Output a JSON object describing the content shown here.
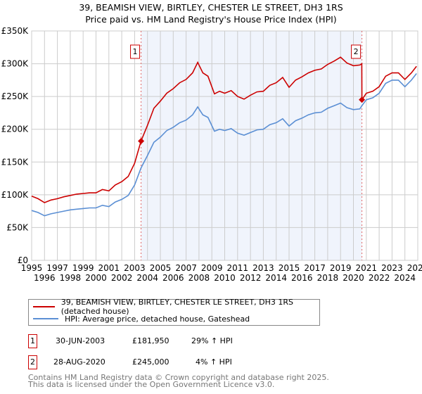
{
  "title_line1": "39, BEAMISH VIEW, BIRTLEY, CHESTER LE STREET, DH3 1RS",
  "title_line2": "Price paid vs. HM Land Registry's House Price Index (HPI)",
  "chart_data": {
    "type": "line",
    "title": "39, BEAMISH VIEW, BIRTLEY, CHESTER LE STREET, DH3 1RS - Price paid vs. HM Land Registry's House Price Index (HPI)",
    "xlim": [
      1995,
      2025
    ],
    "ylim": [
      0,
      350000
    ],
    "grid": true,
    "y_ticks": [
      0,
      50000,
      100000,
      150000,
      200000,
      250000,
      300000,
      350000
    ],
    "y_tick_labels": [
      "£0",
      "£50K",
      "£100K",
      "£150K",
      "£200K",
      "£250K",
      "£300K",
      "£350K"
    ],
    "x_tick_labels": [
      "1995",
      "1996",
      "1997",
      "1998",
      "1999",
      "2000",
      "2001",
      "2002",
      "2003",
      "2004",
      "2005",
      "2006",
      "2007",
      "2008",
      "2009",
      "2010",
      "2011",
      "2012",
      "2013",
      "2014",
      "2015",
      "2016",
      "2017",
      "2018",
      "2019",
      "2020",
      "2021",
      "2022",
      "2023",
      "2024",
      "2025"
    ],
    "shaded_range": [
      2003.5,
      2020.66
    ],
    "series": [
      {
        "name": "39, BEAMISH VIEW, BIRTLEY, CHESTER LE STREET, DH3 1RS (detached house)",
        "color": "#cc0000",
        "x": [
          1995,
          1995.5,
          1996,
          1996.5,
          1997,
          1997.5,
          1998,
          1998.5,
          1999,
          1999.5,
          2000,
          2000.5,
          2001,
          2001.5,
          2002,
          2002.5,
          2003,
          2003.5,
          2004,
          2004.5,
          2005,
          2005.5,
          2006,
          2006.5,
          2007,
          2007.5,
          2007.9,
          2008.3,
          2008.7,
          2009.2,
          2009.6,
          2010,
          2010.5,
          2011,
          2011.5,
          2012,
          2012.5,
          2013,
          2013.5,
          2014,
          2014.5,
          2015,
          2015.5,
          2016,
          2016.5,
          2017,
          2017.5,
          2018,
          2018.5,
          2019,
          2019.5,
          2020,
          2020.5,
          2020.65,
          2020.66,
          2021,
          2021.5,
          2022,
          2022.5,
          2023,
          2023.5,
          2024,
          2024.5,
          2024.9
        ],
        "y": [
          98000,
          94000,
          88000,
          92000,
          94000,
          97000,
          99000,
          101000,
          102000,
          103000,
          103000,
          108000,
          106000,
          115000,
          120000,
          128000,
          148000,
          181950,
          206000,
          232000,
          243000,
          255000,
          262000,
          271000,
          276000,
          286000,
          302000,
          286000,
          281000,
          254000,
          258000,
          255000,
          259000,
          250000,
          246000,
          252000,
          257000,
          258000,
          267000,
          271000,
          279000,
          264000,
          275000,
          280000,
          286000,
          290000,
          292000,
          299000,
          304000,
          310000,
          301000,
          297000,
          298000,
          300000,
          245000,
          255000,
          258000,
          265000,
          281000,
          286000,
          286000,
          276000,
          286000,
          296000
        ]
      },
      {
        "name": "HPI: Average price, detached house, Gateshead",
        "color": "#5b8fd4",
        "x": [
          1995,
          1995.5,
          1996,
          1996.5,
          1997,
          1997.5,
          1998,
          1998.5,
          1999,
          1999.5,
          2000,
          2000.5,
          2001,
          2001.5,
          2002,
          2002.5,
          2003,
          2003.5,
          2004,
          2004.5,
          2005,
          2005.5,
          2006,
          2006.5,
          2007,
          2007.5,
          2007.9,
          2008.3,
          2008.7,
          2009.2,
          2009.6,
          2010,
          2010.5,
          2011,
          2011.5,
          2012,
          2012.5,
          2013,
          2013.5,
          2014,
          2014.5,
          2015,
          2015.5,
          2016,
          2016.5,
          2017,
          2017.5,
          2018,
          2018.5,
          2019,
          2019.5,
          2020,
          2020.5,
          2020.66,
          2021,
          2021.5,
          2022,
          2022.5,
          2023,
          2023.5,
          2024,
          2024.5,
          2024.9
        ],
        "y": [
          76000,
          73000,
          68000,
          71000,
          73000,
          75000,
          77000,
          78000,
          79000,
          80000,
          80000,
          84000,
          82000,
          89000,
          93000,
          99000,
          115000,
          141000,
          160000,
          180000,
          188000,
          198000,
          203000,
          210000,
          214000,
          222000,
          234000,
          222000,
          218000,
          197000,
          200000,
          198000,
          201000,
          194000,
          191000,
          195000,
          199000,
          200000,
          207000,
          210000,
          216000,
          205000,
          213000,
          217000,
          222000,
          225000,
          226000,
          232000,
          236000,
          240000,
          233000,
          230000,
          231000,
          236000,
          245000,
          248000,
          255000,
          270000,
          275000,
          275000,
          265000,
          275000,
          285000
        ]
      }
    ],
    "sales": [
      {
        "label": "1",
        "x": 2003.5,
        "y": 181950
      },
      {
        "label": "2",
        "x": 2020.66,
        "y": 245000
      }
    ]
  },
  "legend": {
    "property": "39, BEAMISH VIEW, BIRTLEY, CHESTER LE STREET, DH3 1RS (detached house)",
    "hpi": "HPI: Average price, detached house, Gateshead"
  },
  "transactions": [
    {
      "num": "1",
      "date": "30-JUN-2003",
      "price": "£181,950",
      "hpi": "29% ↑ HPI"
    },
    {
      "num": "2",
      "date": "28-AUG-2020",
      "price": "£245,000",
      "hpi": "4% ↑ HPI"
    }
  ],
  "footer": {
    "line1": "Contains HM Land Registry data © Crown copyright and database right 2025.",
    "line2": "This data is licensed under the Open Government Licence v3.0."
  }
}
